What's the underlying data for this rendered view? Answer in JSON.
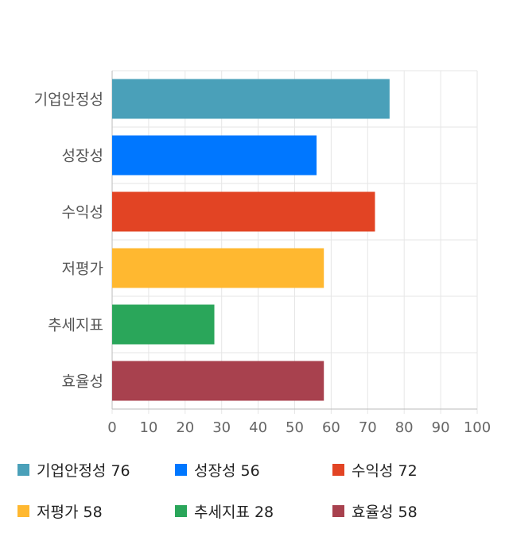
{
  "chart_data": {
    "type": "bar",
    "orientation": "horizontal",
    "categories": [
      "기업안정성",
      "성장성",
      "수익성",
      "저평가",
      "추세지표",
      "효율성"
    ],
    "values": [
      76,
      56,
      72,
      58,
      28,
      58
    ],
    "colors": [
      "#4aa0b9",
      "#0077ff",
      "#e24424",
      "#ffb830",
      "#2aa65a",
      "#a8414e"
    ],
    "xlim": [
      0,
      100
    ],
    "xticks": [
      0,
      10,
      20,
      30,
      40,
      50,
      60,
      70,
      80,
      90,
      100
    ],
    "grid": true,
    "legend_position": "bottom",
    "legend": [
      "기업안정성 76",
      "성장성 56",
      "수익성 72",
      "저평가 58",
      "추세지표 28",
      "효율성 58"
    ]
  }
}
